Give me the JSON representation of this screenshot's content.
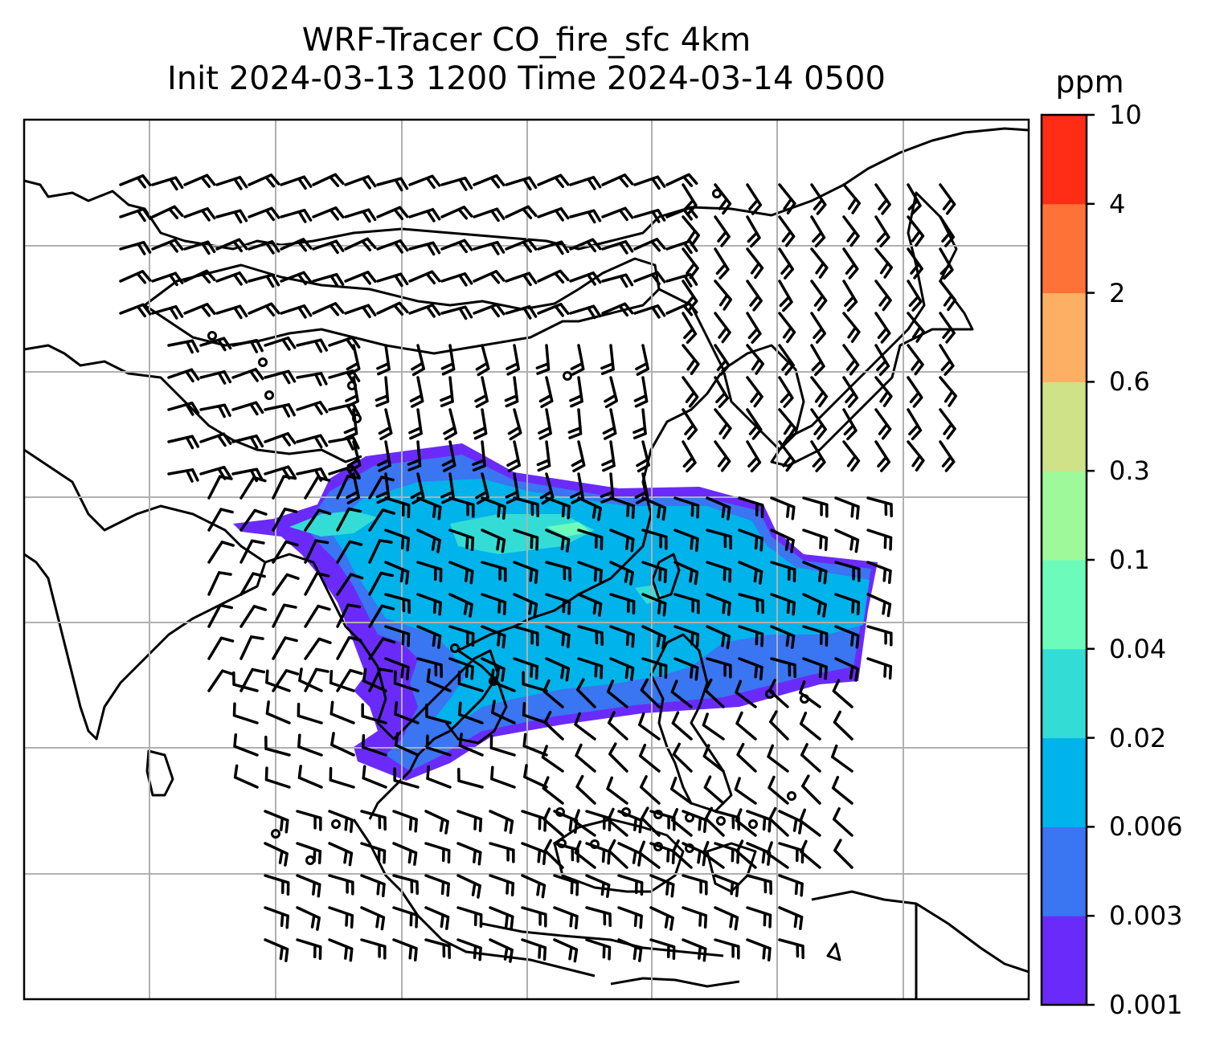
{
  "title": {
    "line1": "WRF-Tracer CO_fire_sfc 4km",
    "line2": "Init 2024-03-13 1200 Time 2024-03-14 0500"
  },
  "colorbar": {
    "unit": "ppm",
    "levels": [
      "0.001",
      "0.003",
      "0.006",
      "0.02",
      "0.04",
      "0.1",
      "0.3",
      "0.6",
      "2",
      "4",
      "10"
    ],
    "colors": [
      "#6a2bfa",
      "#3a75f2",
      "#00b3eb",
      "#33ddd5",
      "#6dfbbb",
      "#9ef99a",
      "#d0e288",
      "#fdb063",
      "#ff7237",
      "#ff2c16"
    ]
  },
  "map": {
    "grid_color": "#b0b0b0",
    "coast_color": "#000000",
    "plume_levels_shown": [
      "0.001",
      "0.003",
      "0.006",
      "0.02",
      "0.04"
    ]
  }
}
